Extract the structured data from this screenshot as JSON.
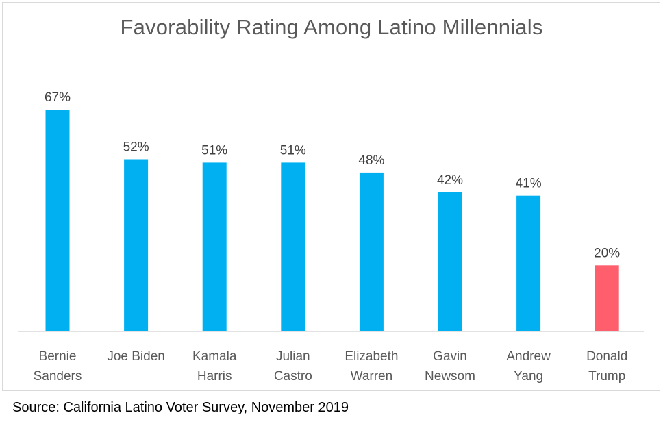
{
  "chart_data": {
    "type": "bar",
    "title": "Favorability Rating Among Latino Millennials",
    "categories": [
      [
        "Bernie",
        "Sanders"
      ],
      [
        "Joe Biden"
      ],
      [
        "Kamala",
        "Harris"
      ],
      [
        "Julian",
        "Castro"
      ],
      [
        "Elizabeth",
        "Warren"
      ],
      [
        "Gavin",
        "Newsom"
      ],
      [
        "Andrew",
        "Yang"
      ],
      [
        "Donald",
        "Trump"
      ]
    ],
    "values": [
      67,
      52,
      51,
      51,
      48,
      42,
      41,
      20
    ],
    "value_labels": [
      "67%",
      "52%",
      "51%",
      "51%",
      "48%",
      "42%",
      "41%",
      "20%"
    ],
    "bar_colors": [
      "#00b0f0",
      "#00b0f0",
      "#00b0f0",
      "#00b0f0",
      "#00b0f0",
      "#00b0f0",
      "#00b0f0",
      "#ff5f6d"
    ],
    "xlabel": "",
    "ylabel": "",
    "ylim": [
      0,
      70
    ]
  },
  "source": "Source: California Latino Voter Survey, November 2019"
}
